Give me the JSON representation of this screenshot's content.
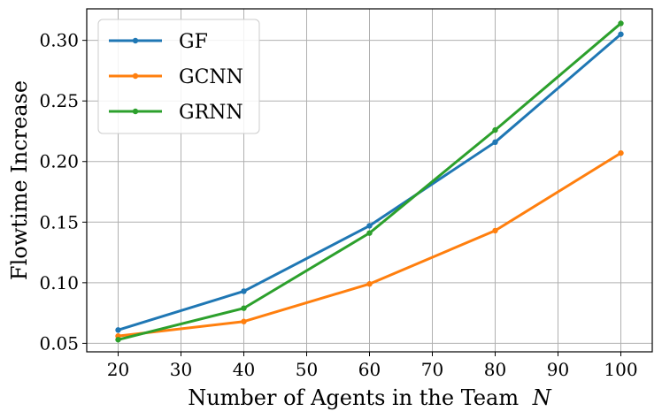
{
  "chart_data": {
    "type": "line",
    "title": "",
    "xlabel": "Number of Agents in the Team N",
    "xlabel_text": "Number of Agents in the Team",
    "xlabel_symbol": "N",
    "ylabel": "Flowtime Increase",
    "x": [
      20,
      40,
      60,
      80,
      100
    ],
    "xlim": [
      15,
      105
    ],
    "ylim": [
      0.043,
      0.326
    ],
    "xticks": [
      20,
      30,
      40,
      50,
      60,
      70,
      80,
      90,
      100
    ],
    "xtick_labels": [
      "20",
      "30",
      "40",
      "50",
      "60",
      "70",
      "80",
      "90",
      "100"
    ],
    "yticks": [
      0.05,
      0.1,
      0.15,
      0.2,
      0.25,
      0.3
    ],
    "ytick_labels": [
      "0.05",
      "0.10",
      "0.15",
      "0.20",
      "0.25",
      "0.30"
    ],
    "grid": true,
    "legend_position": "top-left",
    "series": [
      {
        "name": "GF",
        "color": "#1f77b4",
        "values": [
          0.061,
          0.093,
          0.147,
          0.216,
          0.305
        ]
      },
      {
        "name": "GCNN",
        "color": "#ff7f0e",
        "values": [
          0.056,
          0.068,
          0.099,
          0.143,
          0.207
        ]
      },
      {
        "name": "GRNN",
        "color": "#2ca02c",
        "values": [
          0.053,
          0.079,
          0.141,
          0.226,
          0.314
        ]
      }
    ]
  }
}
